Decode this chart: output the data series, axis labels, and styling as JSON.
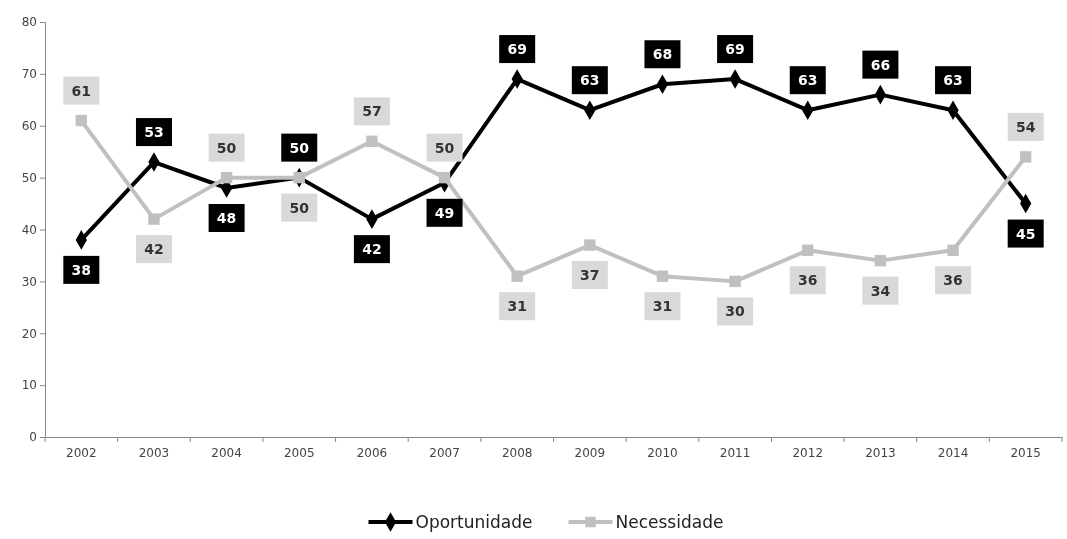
{
  "chart_data": {
    "type": "line",
    "categories": [
      "2002",
      "2003",
      "2004",
      "2005",
      "2006",
      "2007",
      "2008",
      "2009",
      "2010",
      "2011",
      "2012",
      "2013",
      "2014",
      "2015"
    ],
    "series": [
      {
        "name": "Oportunidade",
        "color": "#000000",
        "marker": "diamond",
        "values": [
          38,
          53,
          48,
          50,
          42,
          49,
          69,
          63,
          68,
          69,
          63,
          66,
          63,
          45
        ]
      },
      {
        "name": "Necessidade",
        "color": "#c0c0c0",
        "marker": "square",
        "values": [
          61,
          42,
          50,
          50,
          57,
          50,
          31,
          37,
          31,
          30,
          36,
          34,
          36,
          54
        ]
      }
    ],
    "ylim": [
      0,
      80
    ],
    "yticks": [
      0,
      10,
      20,
      30,
      40,
      50,
      60,
      70,
      80
    ],
    "grid": false,
    "legend": "bottom",
    "data_labels": true
  }
}
